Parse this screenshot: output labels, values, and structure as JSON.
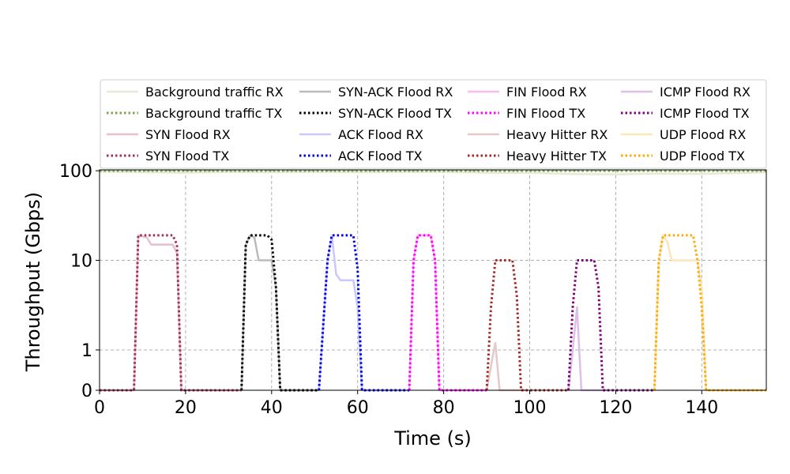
{
  "chart_data": {
    "type": "line",
    "xlabel": "Time (s)",
    "ylabel": "Throughput (Gbps)",
    "xlim": [
      0,
      155
    ],
    "ylim": [
      0,
      100
    ],
    "yscale": "symlog",
    "x_ticks": [
      0,
      20,
      40,
      60,
      80,
      100,
      120,
      140
    ],
    "y_ticks": [
      0,
      1,
      10,
      100
    ],
    "y_tick_labels": [
      "0",
      "1",
      "10",
      "100"
    ],
    "grid": "dashed",
    "legend_position": "top",
    "series": [
      {
        "name": "Background traffic RX",
        "color": "#e6ead6",
        "dash": "solid",
        "points": [
          [
            0,
            98
          ],
          [
            10,
            96
          ],
          [
            20,
            95
          ],
          [
            30,
            97
          ],
          [
            40,
            96
          ],
          [
            50,
            97
          ],
          [
            60,
            96
          ],
          [
            70,
            97
          ],
          [
            80,
            97
          ],
          [
            90,
            95
          ],
          [
            100,
            95
          ],
          [
            110,
            92
          ],
          [
            120,
            91
          ],
          [
            130,
            93
          ],
          [
            140,
            92
          ],
          [
            150,
            95
          ],
          [
            155,
            96
          ]
        ]
      },
      {
        "name": "Background traffic TX",
        "color": "#7fa34c",
        "dash": "dotted",
        "points": [
          [
            0,
            100
          ],
          [
            155,
            100
          ]
        ]
      },
      {
        "name": "SYN Flood RX",
        "color": "#e8c0cc",
        "dash": "solid",
        "points": [
          [
            0,
            0
          ],
          [
            8,
            0
          ],
          [
            9,
            19
          ],
          [
            11,
            18
          ],
          [
            12,
            15
          ],
          [
            17,
            15
          ],
          [
            18,
            12
          ],
          [
            19,
            0
          ],
          [
            33,
            0
          ]
        ]
      },
      {
        "name": "SYN Flood TX",
        "color": "#a03050",
        "dash": "dotted",
        "points": [
          [
            0,
            0
          ],
          [
            8,
            0
          ],
          [
            9,
            19
          ],
          [
            17,
            19
          ],
          [
            18,
            15
          ],
          [
            19,
            0
          ],
          [
            33,
            0
          ]
        ]
      },
      {
        "name": "SYN-ACK Flood RX",
        "color": "#bbbbbb",
        "dash": "solid",
        "points": [
          [
            33,
            0
          ],
          [
            34,
            15
          ],
          [
            35,
            19
          ],
          [
            36,
            18
          ],
          [
            37,
            10
          ],
          [
            40,
            10
          ],
          [
            41,
            5
          ],
          [
            42,
            0
          ],
          [
            51,
            0
          ]
        ]
      },
      {
        "name": "SYN-ACK Flood TX",
        "color": "#000000",
        "dash": "dotted",
        "points": [
          [
            33,
            0
          ],
          [
            34,
            15
          ],
          [
            35,
            19
          ],
          [
            39,
            19
          ],
          [
            40,
            17
          ],
          [
            41,
            5
          ],
          [
            42,
            0
          ],
          [
            51,
            0
          ]
        ]
      },
      {
        "name": "ACK Flood RX",
        "color": "#c8c8ff",
        "dash": "solid",
        "points": [
          [
            51,
            0
          ],
          [
            53,
            10
          ],
          [
            54,
            19
          ],
          [
            55,
            7
          ],
          [
            56,
            6
          ],
          [
            59,
            6
          ],
          [
            60,
            3
          ],
          [
            61,
            0
          ],
          [
            72,
            0
          ]
        ]
      },
      {
        "name": "ACK Flood TX",
        "color": "#0000ee",
        "dash": "dotted",
        "points": [
          [
            51,
            0
          ],
          [
            53,
            10
          ],
          [
            54,
            19
          ],
          [
            59,
            19
          ],
          [
            60,
            8
          ],
          [
            61,
            0
          ],
          [
            72,
            0
          ]
        ]
      },
      {
        "name": "FIN Flood RX",
        "color": "#ffb8f0",
        "dash": "solid",
        "points": [
          [
            72,
            0
          ],
          [
            73,
            10
          ],
          [
            74,
            19
          ],
          [
            77,
            19
          ],
          [
            78,
            10
          ],
          [
            79,
            0
          ],
          [
            90,
            0
          ]
        ]
      },
      {
        "name": "FIN Flood TX",
        "color": "#ff00ff",
        "dash": "dotted",
        "points": [
          [
            72,
            0
          ],
          [
            73,
            10
          ],
          [
            74,
            19
          ],
          [
            77,
            19
          ],
          [
            78,
            10
          ],
          [
            79,
            0
          ],
          [
            90,
            0
          ]
        ]
      },
      {
        "name": "Heavy Hitter RX",
        "color": "#e6c8c8",
        "dash": "solid",
        "points": [
          [
            90,
            0
          ],
          [
            91,
            0.6
          ],
          [
            92,
            1.2
          ],
          [
            93,
            0
          ],
          [
            99,
            0
          ]
        ]
      },
      {
        "name": "Heavy Hitter TX",
        "color": "#a82828",
        "dash": "dotted",
        "points": [
          [
            90,
            0
          ],
          [
            91,
            3
          ],
          [
            92,
            10
          ],
          [
            96,
            10
          ],
          [
            97,
            4
          ],
          [
            98,
            0
          ],
          [
            109,
            0
          ]
        ]
      },
      {
        "name": "ICMP Flood RX",
        "color": "#dcc0e6",
        "dash": "solid",
        "points": [
          [
            109,
            0
          ],
          [
            110,
            1
          ],
          [
            111,
            3
          ],
          [
            112,
            0
          ],
          [
            118,
            0
          ]
        ]
      },
      {
        "name": "ICMP Flood TX",
        "color": "#800080",
        "dash": "dotted",
        "points": [
          [
            109,
            0
          ],
          [
            110,
            3
          ],
          [
            111,
            10
          ],
          [
            115,
            10
          ],
          [
            116,
            5
          ],
          [
            117,
            0
          ],
          [
            129,
            0
          ]
        ]
      },
      {
        "name": "UDP Flood RX",
        "color": "#fde6b8",
        "dash": "solid",
        "points": [
          [
            129,
            0
          ],
          [
            130,
            10
          ],
          [
            131,
            19
          ],
          [
            132,
            16
          ],
          [
            133,
            10
          ],
          [
            139,
            10
          ],
          [
            140,
            5
          ],
          [
            141,
            0
          ],
          [
            155,
            0
          ]
        ]
      },
      {
        "name": "UDP Flood TX",
        "color": "#ffaa00",
        "dash": "dotted",
        "points": [
          [
            129,
            0
          ],
          [
            130,
            10
          ],
          [
            131,
            19
          ],
          [
            138,
            19
          ],
          [
            139,
            10
          ],
          [
            140,
            3
          ],
          [
            141,
            0
          ],
          [
            155,
            0
          ]
        ]
      }
    ]
  }
}
